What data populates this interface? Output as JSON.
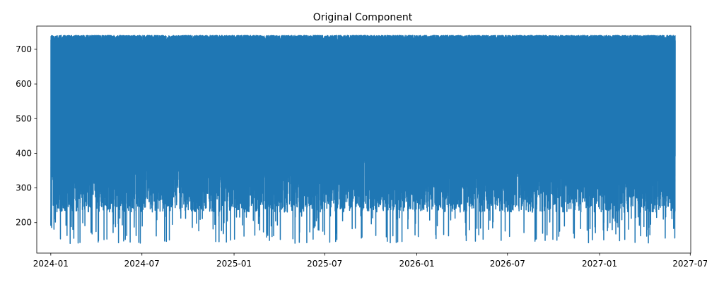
{
  "chart_data": {
    "type": "line",
    "title": "Original Component",
    "xlabel": "",
    "ylabel": "",
    "x_range": [
      "2023-12-04",
      "2027-07-02"
    ],
    "ylim": [
      112,
      767
    ],
    "x_ticks": [
      {
        "date": "2024-01-01",
        "label": "2024-01"
      },
      {
        "date": "2024-07-01",
        "label": "2024-07"
      },
      {
        "date": "2025-01-01",
        "label": "2025-01"
      },
      {
        "date": "2025-07-01",
        "label": "2025-07"
      },
      {
        "date": "2026-01-01",
        "label": "2026-01"
      },
      {
        "date": "2026-07-01",
        "label": "2026-07"
      },
      {
        "date": "2027-01-01",
        "label": "2027-01"
      },
      {
        "date": "2027-07-01",
        "label": "2027-07"
      }
    ],
    "y_ticks": [
      200,
      300,
      400,
      500,
      600,
      700
    ],
    "grid": false,
    "legend": "none",
    "series": [
      {
        "color": "#1f77b4",
        "x_start": "2024-01-01",
        "x_end": "2027-06-01",
        "frequency": "hourly",
        "typical_range": [
          230,
          740
        ],
        "y_min": 140,
        "y_max": 740,
        "mean": 500
      }
    ]
  }
}
